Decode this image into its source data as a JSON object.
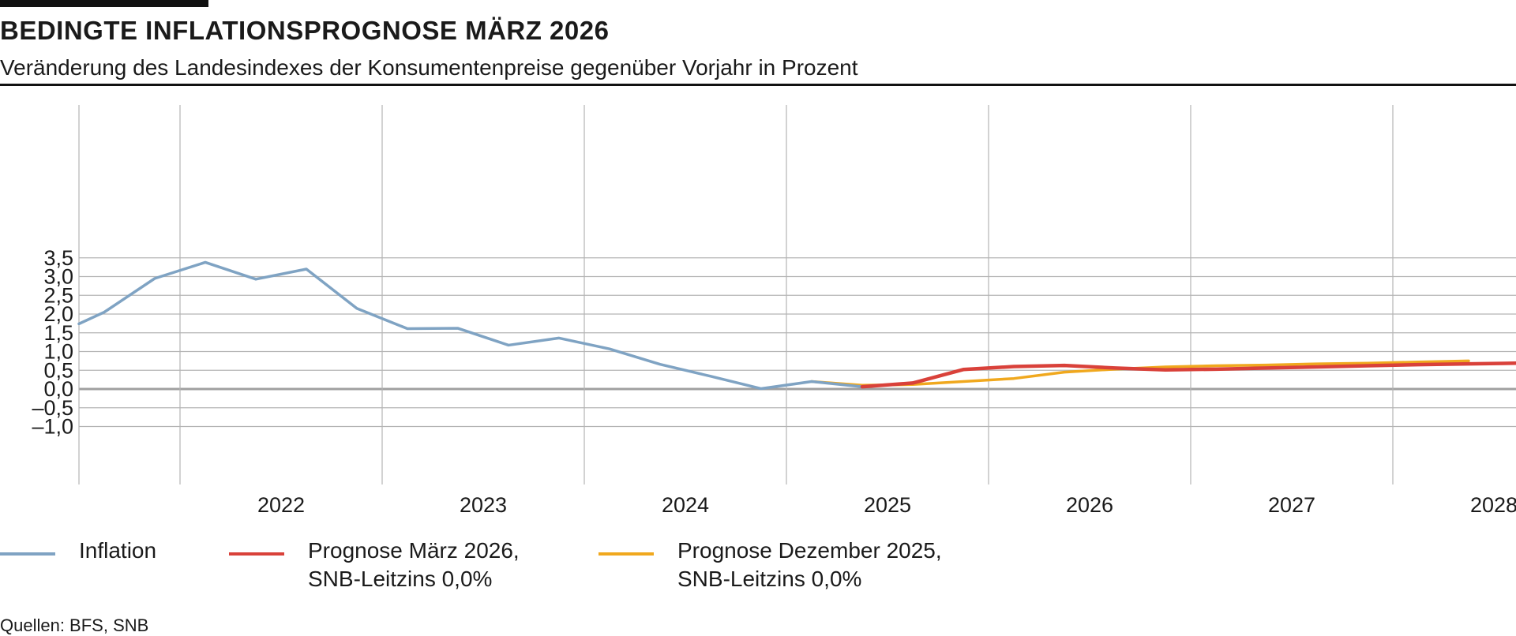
{
  "header": {
    "title": "BEDINGTE INFLATIONSPROGNOSE MÄRZ 2026",
    "subtitle": "Veränderung des Landesindexes der Konsumentenpreise gegenüber Vorjahr in Prozent"
  },
  "footer": {
    "source": "Quellen: BFS, SNB"
  },
  "colors": {
    "inflation": "#7fa3c3",
    "forecast_march_2026": "#d9413a",
    "forecast_december_2025": "#f0a81e",
    "grid": "#b4b4b4",
    "zero_line": "#a0a0a0"
  },
  "chart_data": {
    "type": "line",
    "title": "BEDINGTE INFLATIONSPROGNOSE MÄRZ 2026",
    "subtitle": "Veränderung des Landesindexes der Konsumentenpreise gegenüber Vorjahr in Prozent",
    "xlabel": "",
    "ylabel": "",
    "xlim": [
      "2021-07",
      "2028-10"
    ],
    "ylim": [
      -1.0,
      3.5
    ],
    "y_ticks": [
      "3,5",
      "3,0",
      "2,5",
      "2,0",
      "1,5",
      "1,0",
      "0,5",
      "0,0",
      "–0,5",
      "–1,0"
    ],
    "y_tick_values": [
      3.5,
      3.0,
      2.5,
      2.0,
      1.5,
      1.0,
      0.5,
      0.0,
      -0.5,
      -1.0
    ],
    "x_ticks": [
      "2022",
      "2023",
      "2024",
      "2025",
      "2026",
      "2027",
      "2028"
    ],
    "grid": true,
    "legend_position": "bottom",
    "series": [
      {
        "name": "Inflation",
        "x": [
          "2021-Q3",
          "2021-Q4",
          "2022-Q1",
          "2022-Q2",
          "2022-Q3",
          "2022-Q4",
          "2023-Q1",
          "2023-Q2",
          "2023-Q3",
          "2023-Q4",
          "2024-Q1",
          "2024-Q2",
          "2024-Q3",
          "2024-Q4",
          "2025-Q1",
          "2025-Q2"
        ],
        "values": [
          2.05,
          2.95,
          3.38,
          2.93,
          3.2,
          2.15,
          1.61,
          1.62,
          1.17,
          1.36,
          1.07,
          0.66,
          0.34,
          0.01,
          0.2,
          0.06
        ]
      },
      {
        "name": "Prognose März 2026, SNB-Leitzins 0,0%",
        "x": [
          "2025-Q2",
          "2025-Q3",
          "2025-Q4",
          "2026-Q1",
          "2026-Q2",
          "2026-Q3",
          "2026-Q4",
          "2027-Q1",
          "2027-Q2",
          "2027-Q3",
          "2027-Q4",
          "2028-Q1",
          "2028-Q2",
          "2028-Q3"
        ],
        "values": [
          0.06,
          0.16,
          0.52,
          0.6,
          0.63,
          0.56,
          0.51,
          0.53,
          0.56,
          0.59,
          0.62,
          0.65,
          0.67,
          0.69
        ]
      },
      {
        "name": "Prognose Dezember 2025, SNB-Leitzins 0,0%",
        "x": [
          "2025-Q1",
          "2025-Q2",
          "2025-Q3",
          "2025-Q4",
          "2026-Q1",
          "2026-Q2",
          "2026-Q3",
          "2026-Q4",
          "2027-Q1",
          "2027-Q2",
          "2027-Q3",
          "2027-Q4",
          "2028-Q1",
          "2028-Q2"
        ],
        "values": [
          0.2,
          0.1,
          0.12,
          0.2,
          0.28,
          0.45,
          0.53,
          0.59,
          0.62,
          0.64,
          0.67,
          0.69,
          0.72,
          0.75
        ]
      }
    ]
  },
  "legend": {
    "items": [
      {
        "key": "inflation",
        "lines": [
          "Inflation"
        ]
      },
      {
        "key": "forecast_march_2026",
        "lines": [
          "Prognose März 2026,",
          "SNB-Leitzins 0,0%"
        ]
      },
      {
        "key": "forecast_december_2025",
        "lines": [
          "Prognose Dezember 2025,",
          "SNB-Leitzins 0,0%"
        ]
      }
    ]
  }
}
